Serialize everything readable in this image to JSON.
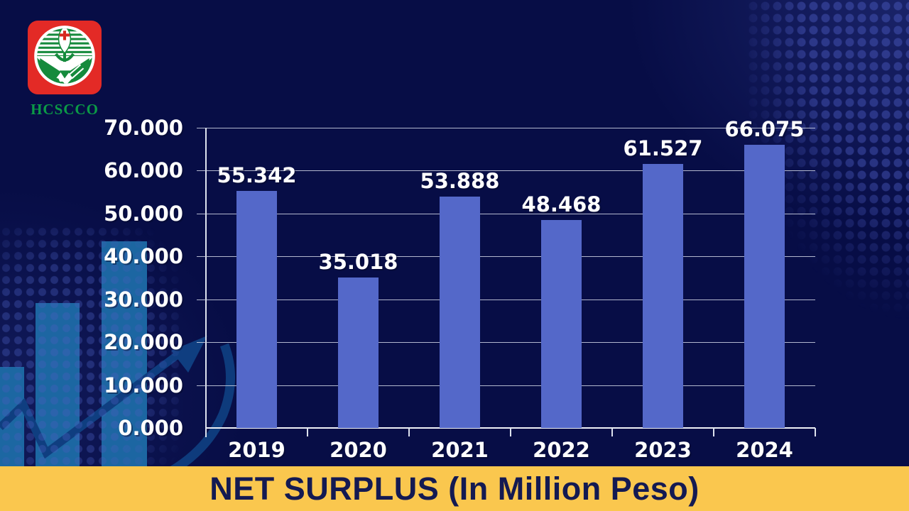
{
  "logo": {
    "text": "HCSCCO"
  },
  "banner": {
    "title": "NET SURPLUS (In Million Peso)",
    "bg_color": "#FAC74E",
    "text_color": "#141A52"
  },
  "chart_data": {
    "type": "bar",
    "title": "NET SURPLUS (In Million Peso)",
    "categories": [
      "2019",
      "2020",
      "2021",
      "2022",
      "2023",
      "2024"
    ],
    "values": [
      55.342,
      35.018,
      53.888,
      48.468,
      61.527,
      66.075
    ],
    "value_labels": [
      "55.342",
      "35.018",
      "53.888",
      "48.468",
      "61.527",
      "66.075"
    ],
    "ylim": [
      0,
      70
    ],
    "ytick_step": 10,
    "ytick_labels": [
      "70.000",
      "60.000",
      "50.000",
      "40.000",
      "30.000",
      "20.000",
      "10.000",
      "0.000"
    ],
    "grid": true,
    "legend": "none",
    "bar_color": "#5468C9",
    "gridline_color": "#D0D6E6",
    "label_color": "#FFFFFF"
  },
  "decor": {
    "background_color": "#070D46",
    "deco_bar_color": "#1E6EA9",
    "arrow_color": "#0F3E80",
    "dot_color": "#4A5EBE"
  }
}
